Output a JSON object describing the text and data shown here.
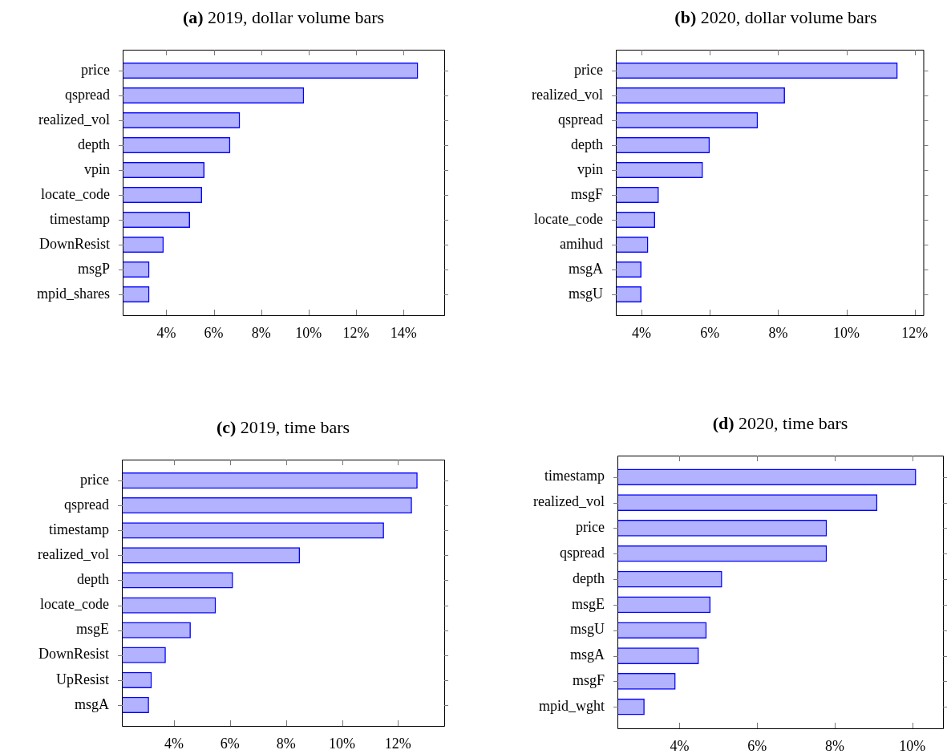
{
  "chart_data": [
    {
      "type": "bar",
      "orientation": "horizontal",
      "title": "(a) 2019, dollar volume bars",
      "categories": [
        "price",
        "qspread",
        "realized_vol",
        "depth",
        "vpin",
        "locate_code",
        "timestamp",
        "DownResist",
        "msgP",
        "mpid_shares"
      ],
      "values": [
        14.62,
        9.81,
        7.11,
        6.7,
        5.61,
        5.51,
        5.0,
        3.89,
        3.29,
        3.29
      ],
      "color": "#0000ff",
      "xlim": [
        2.16,
        15.72
      ],
      "xticks": [
        {
          "value": 4,
          "label": "4%"
        },
        {
          "value": 6,
          "label": "6%"
        },
        {
          "value": 8,
          "label": "8%"
        },
        {
          "value": 10,
          "label": "10%"
        },
        {
          "value": 12,
          "label": "12%"
        },
        {
          "value": 14,
          "label": "14%"
        }
      ]
    },
    {
      "type": "bar",
      "orientation": "horizontal",
      "title": "(b) 2020, dollar volume bars",
      "categories": [
        "price",
        "realized_vol",
        "qspread",
        "depth",
        "vpin",
        "msgF",
        "locate_code",
        "amihud",
        "msgA",
        "msgU"
      ],
      "values": [
        11.5,
        8.2,
        7.41,
        6.0,
        5.8,
        4.51,
        4.4,
        4.2,
        4.0,
        4.0
      ],
      "color": "#0000ff",
      "xlim": [
        3.25,
        12.25
      ],
      "xticks": [
        {
          "value": 4,
          "label": "4%"
        },
        {
          "value": 6,
          "label": "6%"
        },
        {
          "value": 8,
          "label": "8%"
        },
        {
          "value": 10,
          "label": "10%"
        },
        {
          "value": 12,
          "label": "12%"
        }
      ]
    },
    {
      "type": "bar",
      "orientation": "horizontal",
      "title": "(c) 2019, time bars",
      "categories": [
        "price",
        "qspread",
        "timestamp",
        "realized_vol",
        "depth",
        "locate_code",
        "msgE",
        "DownResist",
        "UpResist",
        "msgA"
      ],
      "values": [
        12.7,
        12.5,
        11.5,
        8.5,
        6.11,
        5.5,
        4.6,
        3.71,
        3.21,
        3.11
      ],
      "color": "#0000ff",
      "xlim": [
        2.14,
        13.65
      ],
      "xticks": [
        {
          "value": 4,
          "label": "4%"
        },
        {
          "value": 6,
          "label": "6%"
        },
        {
          "value": 8,
          "label": "8%"
        },
        {
          "value": 10,
          "label": "10%"
        },
        {
          "value": 12,
          "label": "12%"
        }
      ]
    },
    {
      "type": "bar",
      "orientation": "horizontal",
      "title": "(d) 2020, time bars",
      "categories": [
        "timestamp",
        "realized_vol",
        "price",
        "qspread",
        "depth",
        "msgE",
        "msgU",
        "msgA",
        "msgF",
        "mpid_wght"
      ],
      "values": [
        10.1,
        9.1,
        7.8,
        7.8,
        5.1,
        4.8,
        4.7,
        4.5,
        3.9,
        3.1
      ],
      "color": "#0000ff",
      "xlim": [
        2.4,
        10.79
      ],
      "xticks": [
        {
          "value": 4,
          "label": "4%"
        },
        {
          "value": 6,
          "label": "6%"
        },
        {
          "value": 8,
          "label": "8%"
        },
        {
          "value": 10,
          "label": "10%"
        }
      ]
    }
  ]
}
